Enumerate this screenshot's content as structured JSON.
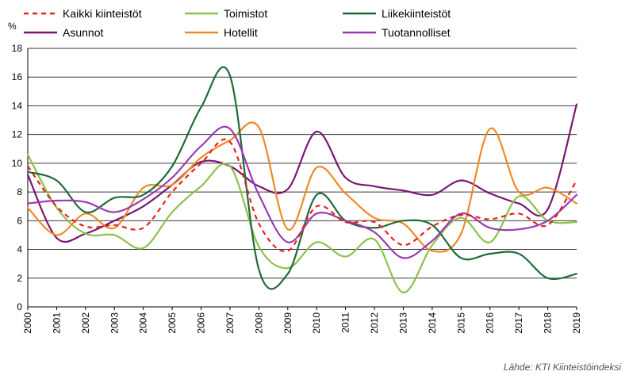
{
  "chart_data": {
    "type": "line",
    "title": "",
    "ylabel": "%",
    "xlabel": "",
    "source": "Lähde: KTI Kiinteistöindeksi",
    "ylim": [
      0,
      18
    ],
    "yticks": [
      0,
      2,
      4,
      6,
      8,
      10,
      12,
      14,
      16,
      18
    ],
    "grid": "horizontal",
    "legend_position": "top",
    "x": [
      "2000",
      "2001",
      "2002",
      "2003",
      "2004",
      "2005",
      "2006",
      "2007",
      "2008",
      "2009",
      "2010",
      "2011",
      "2012",
      "2013",
      "2014",
      "2015",
      "2016",
      "2017",
      "2018",
      "2019"
    ],
    "series": [
      {
        "name": "Kaikki kiinteistöt",
        "color": "#e8211b",
        "dash": true,
        "values": [
          9.8,
          7.0,
          5.6,
          5.7,
          5.5,
          8.0,
          10.0,
          11.5,
          5.8,
          3.9,
          7.0,
          5.9,
          5.9,
          4.3,
          5.6,
          6.4,
          6.1,
          6.5,
          5.7,
          8.8
        ]
      },
      {
        "name": "Asunnot",
        "color": "#7b1673",
        "dash": false,
        "values": [
          9.2,
          4.8,
          5.1,
          6.0,
          7.0,
          8.5,
          10.1,
          9.8,
          8.4,
          8.2,
          12.2,
          9.0,
          8.4,
          8.1,
          7.8,
          8.8,
          7.9,
          7.2,
          6.8,
          14.1
        ]
      },
      {
        "name": "Toimistot",
        "color": "#8bc34a",
        "dash": false,
        "values": [
          10.6,
          6.9,
          5.1,
          5.0,
          4.1,
          6.6,
          8.4,
          9.8,
          4.2,
          2.7,
          4.5,
          3.5,
          4.7,
          1.0,
          4.3,
          6.2,
          4.5,
          7.7,
          6.0,
          5.9
        ]
      },
      {
        "name": "Hotellit",
        "color": "#f08a24",
        "dash": false,
        "values": [
          6.9,
          5.0,
          6.5,
          5.5,
          8.3,
          8.5,
          10.4,
          11.6,
          12.5,
          5.4,
          9.7,
          7.9,
          6.2,
          5.8,
          3.9,
          5.1,
          12.4,
          8.0,
          8.3,
          7.2
        ]
      },
      {
        "name": "Liikekiinteistöt",
        "color": "#1e6b3a",
        "dash": false,
        "values": [
          9.4,
          8.8,
          6.6,
          7.6,
          7.8,
          9.8,
          13.9,
          16.1,
          2.6,
          2.3,
          7.8,
          6.0,
          5.5,
          6.0,
          5.7,
          3.4,
          3.7,
          3.7,
          2.0,
          2.3
        ]
      },
      {
        "name": "Tuotannolliset",
        "color": "#9b3bb5",
        "dash": false,
        "values": [
          7.2,
          7.4,
          7.3,
          6.6,
          7.5,
          9.0,
          11.2,
          12.4,
          7.8,
          4.5,
          6.5,
          6.0,
          5.2,
          3.4,
          4.6,
          6.5,
          5.5,
          5.4,
          6.0,
          7.8
        ]
      }
    ]
  }
}
